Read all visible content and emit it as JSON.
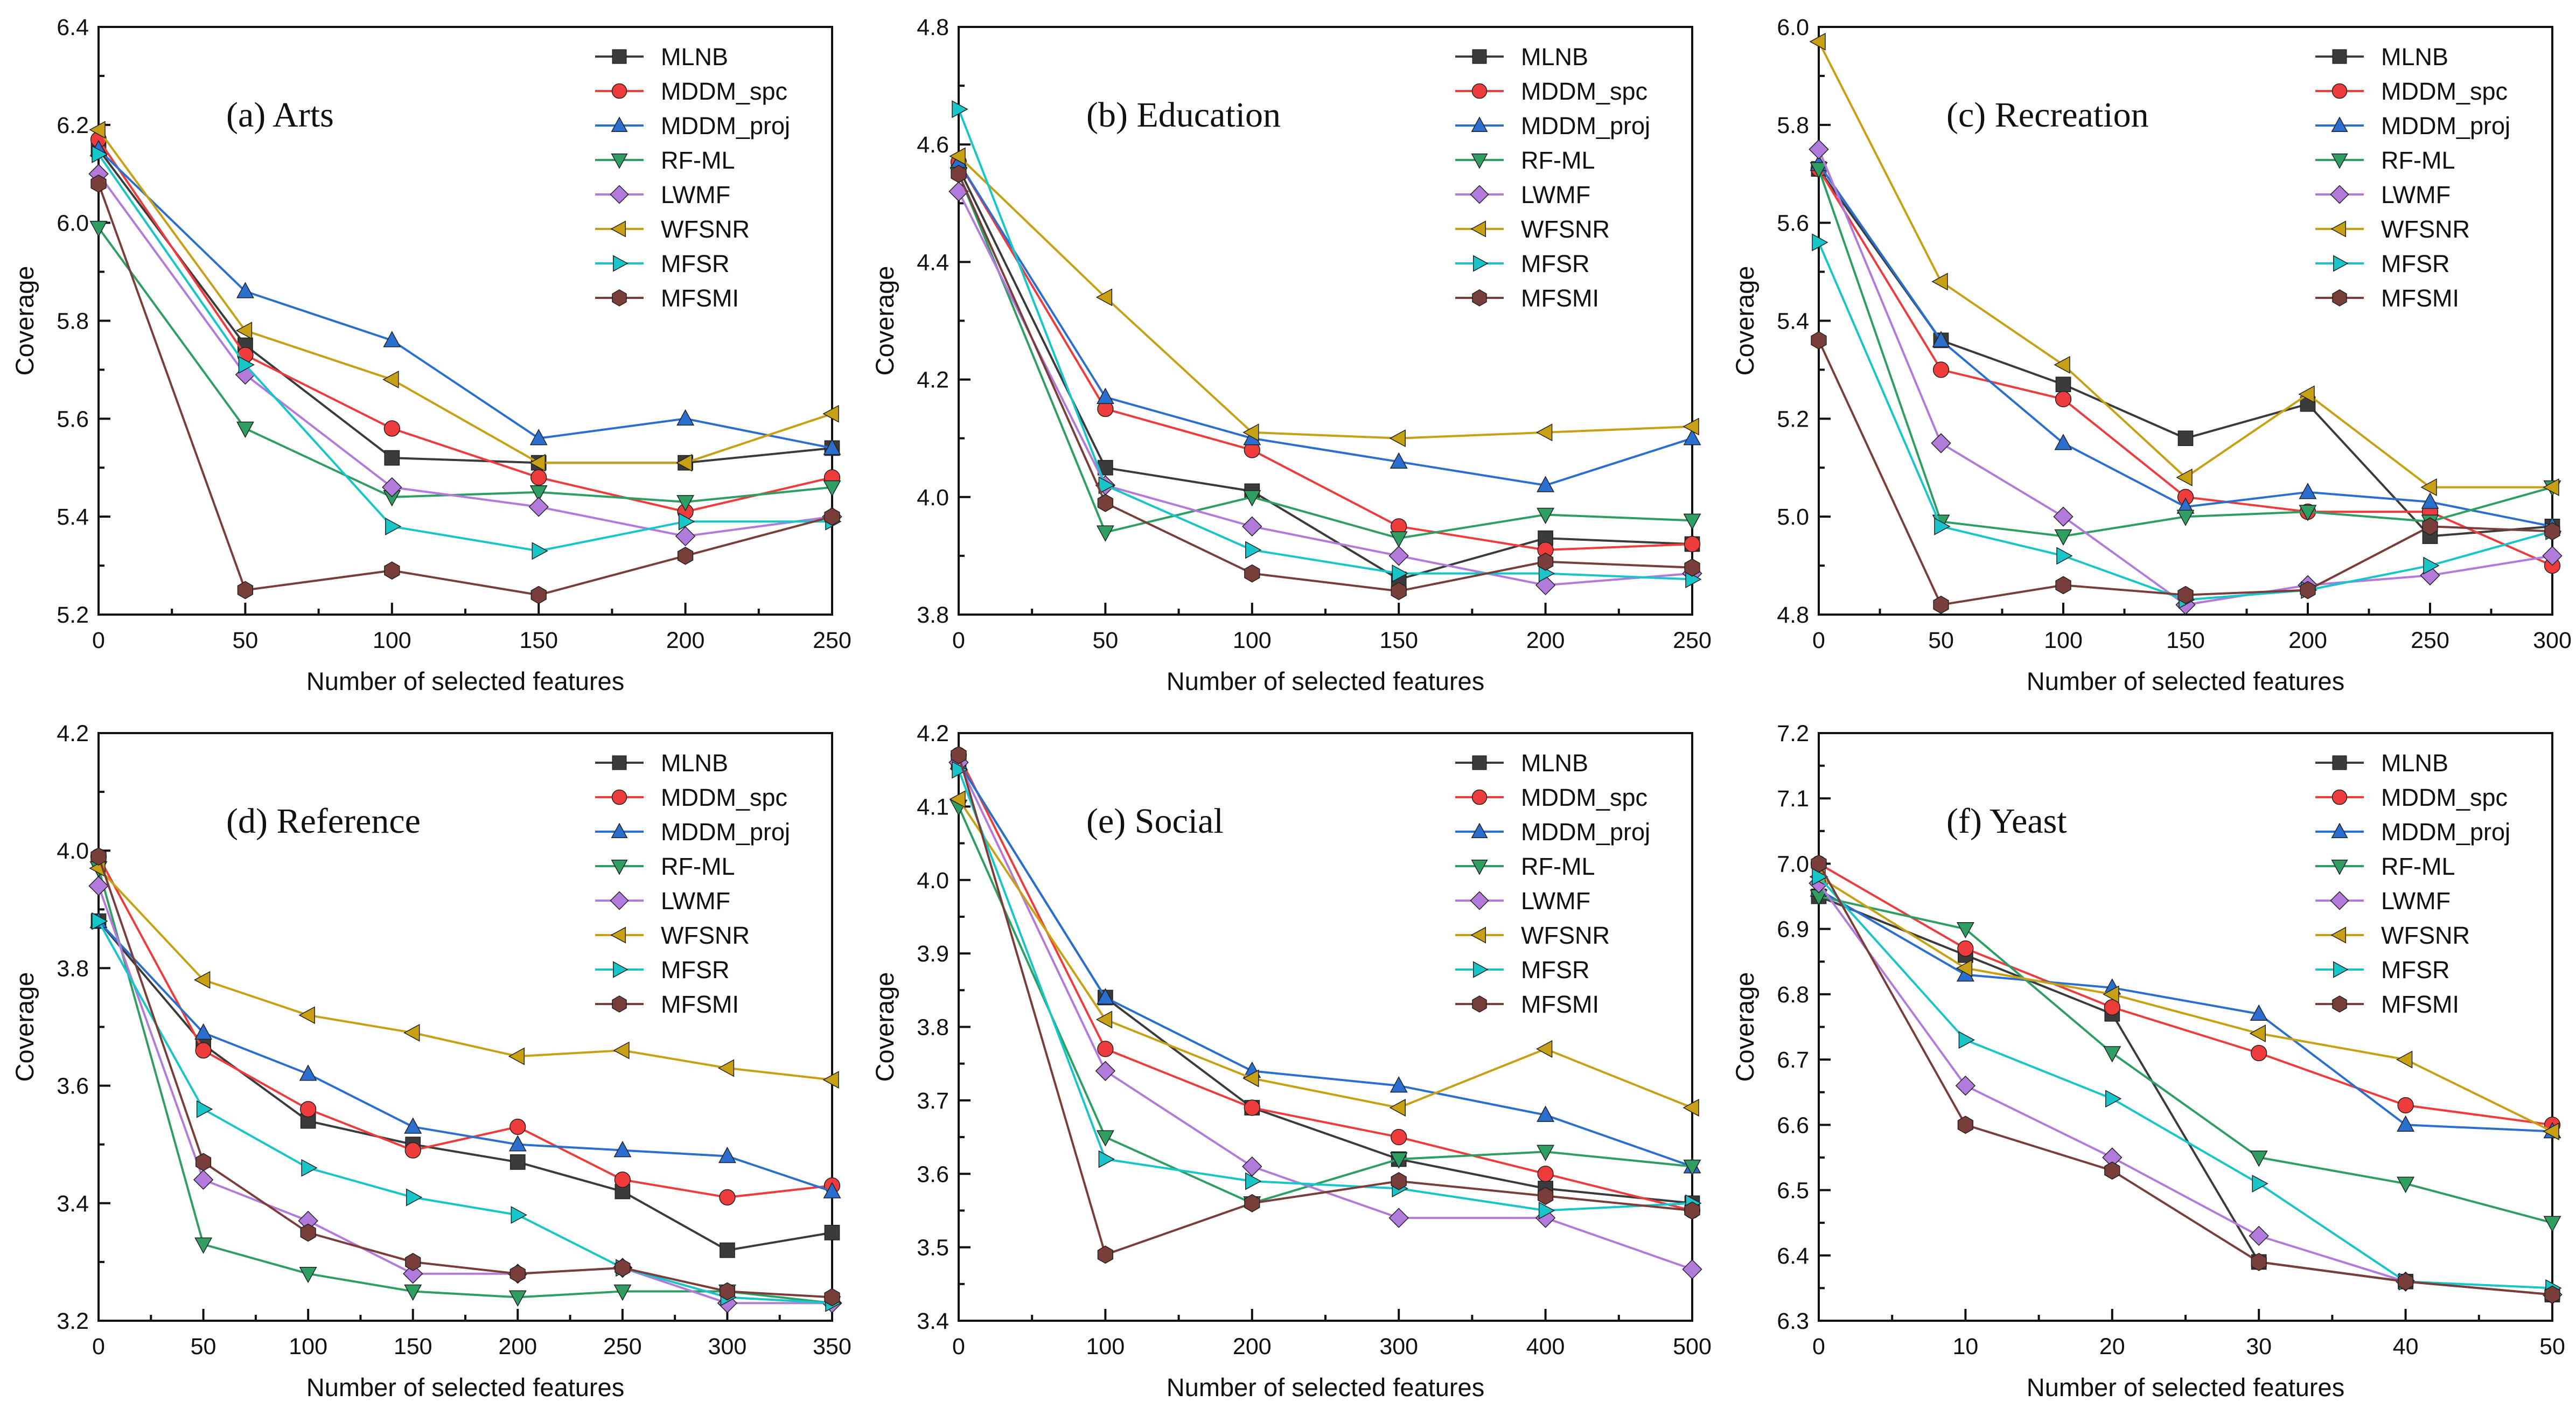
{
  "figure": {
    "series_names": [
      "MLNB",
      "MDDM_spc",
      "MDDM_proj",
      "RF-ML",
      "LWMF",
      "WFSNR",
      "MFSR",
      "MFSMI"
    ],
    "series_styles": [
      {
        "name": "MLNB",
        "color": "#3b3b3b",
        "marker": "square"
      },
      {
        "name": "MDDM_spc",
        "color": "#ee3b3b",
        "marker": "circle"
      },
      {
        "name": "MDDM_proj",
        "color": "#2a6fcf",
        "marker": "triangle-up"
      },
      {
        "name": "RF-ML",
        "color": "#2e9e63",
        "marker": "triangle-down"
      },
      {
        "name": "LWMF",
        "color": "#b27bdb",
        "marker": "diamond"
      },
      {
        "name": "WFSNR",
        "color": "#c8a014",
        "marker": "triangle-left"
      },
      {
        "name": "MFSR",
        "color": "#18c5c9",
        "marker": "triangle-right"
      },
      {
        "name": "MFSMI",
        "color": "#7a3e3a",
        "marker": "hexagon"
      }
    ]
  },
  "chart_data": [
    {
      "type": "line",
      "title": "(a) Arts",
      "xlabel": "Number of selected features",
      "ylabel": "Coverage",
      "x": [
        0,
        50,
        100,
        150,
        200,
        250
      ],
      "xlim": [
        0,
        250
      ],
      "ylim": [
        5.2,
        6.4
      ],
      "xticks": [
        "0",
        "50",
        "100",
        "150",
        "200",
        "250"
      ],
      "yticks": [
        "5.2",
        "5.4",
        "5.6",
        "5.8",
        "6.0",
        "6.2",
        "6.4"
      ],
      "legend_position": "top-right",
      "series": [
        {
          "name": "MLNB",
          "values": [
            6.15,
            5.75,
            5.52,
            5.51,
            5.51,
            5.54
          ]
        },
        {
          "name": "MDDM_spc",
          "values": [
            6.17,
            5.73,
            5.58,
            5.48,
            5.41,
            5.48
          ]
        },
        {
          "name": "MDDM_proj",
          "values": [
            6.15,
            5.86,
            5.76,
            5.56,
            5.6,
            5.54
          ]
        },
        {
          "name": "RF-ML",
          "values": [
            5.99,
            5.58,
            5.44,
            5.45,
            5.43,
            5.46
          ]
        },
        {
          "name": "LWMF",
          "values": [
            6.1,
            5.69,
            5.46,
            5.42,
            5.36,
            5.4
          ]
        },
        {
          "name": "WFSNR",
          "values": [
            6.19,
            5.78,
            5.68,
            5.51,
            5.51,
            5.61
          ]
        },
        {
          "name": "MFSR",
          "values": [
            6.14,
            5.71,
            5.38,
            5.33,
            5.39,
            5.39
          ]
        },
        {
          "name": "MFSMI",
          "values": [
            6.08,
            5.25,
            5.29,
            5.24,
            5.32,
            5.4
          ]
        }
      ]
    },
    {
      "type": "line",
      "title": "(b) Education",
      "xlabel": "Number of selected features",
      "ylabel": "Coverage",
      "x": [
        0,
        50,
        100,
        150,
        200,
        250
      ],
      "xlim": [
        0,
        250
      ],
      "ylim": [
        3.8,
        4.8
      ],
      "xticks": [
        "0",
        "50",
        "100",
        "150",
        "200",
        "250"
      ],
      "yticks": [
        "3.8",
        "4.0",
        "4.2",
        "4.4",
        "4.6",
        "4.8"
      ],
      "legend_position": "top-right",
      "series": [
        {
          "name": "MLNB",
          "values": [
            4.56,
            4.05,
            4.01,
            3.86,
            3.93,
            3.92
          ]
        },
        {
          "name": "MDDM_spc",
          "values": [
            4.57,
            4.15,
            4.08,
            3.95,
            3.91,
            3.92
          ]
        },
        {
          "name": "MDDM_proj",
          "values": [
            4.57,
            4.17,
            4.1,
            4.06,
            4.02,
            4.1
          ]
        },
        {
          "name": "RF-ML",
          "values": [
            4.55,
            3.94,
            4.0,
            3.93,
            3.97,
            3.96
          ]
        },
        {
          "name": "LWMF",
          "values": [
            4.52,
            4.02,
            3.95,
            3.9,
            3.85,
            3.87
          ]
        },
        {
          "name": "WFSNR",
          "values": [
            4.58,
            4.34,
            4.11,
            4.1,
            4.11,
            4.12
          ]
        },
        {
          "name": "MFSR",
          "values": [
            4.66,
            4.02,
            3.91,
            3.87,
            3.87,
            3.86
          ]
        },
        {
          "name": "MFSMI",
          "values": [
            4.55,
            3.99,
            3.87,
            3.84,
            3.89,
            3.88
          ]
        }
      ]
    },
    {
      "type": "line",
      "title": "(c) Recreation",
      "xlabel": "Number of selected features",
      "ylabel": "Coverage",
      "x": [
        0,
        50,
        100,
        150,
        200,
        250,
        300
      ],
      "xlim": [
        0,
        300
      ],
      "ylim": [
        4.8,
        6.0
      ],
      "xticks": [
        "0",
        "50",
        "100",
        "150",
        "200",
        "250",
        "300"
      ],
      "yticks": [
        "4.8",
        "5.0",
        "5.2",
        "5.4",
        "5.6",
        "5.8",
        "6.0"
      ],
      "legend_position": "top-right",
      "series": [
        {
          "name": "MLNB",
          "values": [
            5.71,
            5.36,
            5.27,
            5.16,
            5.23,
            4.96,
            4.98
          ]
        },
        {
          "name": "MDDM_spc",
          "values": [
            5.71,
            5.3,
            5.24,
            5.04,
            5.01,
            5.01,
            4.9
          ]
        },
        {
          "name": "MDDM_proj",
          "values": [
            5.72,
            5.36,
            5.15,
            5.02,
            5.05,
            5.03,
            4.98
          ]
        },
        {
          "name": "RF-ML",
          "values": [
            5.71,
            4.99,
            4.96,
            5.0,
            5.01,
            4.99,
            5.06
          ]
        },
        {
          "name": "LWMF",
          "values": [
            5.75,
            5.15,
            5.0,
            4.82,
            4.86,
            4.88,
            4.92
          ]
        },
        {
          "name": "WFSNR",
          "values": [
            5.97,
            5.48,
            5.31,
            5.08,
            5.25,
            5.06,
            5.06
          ]
        },
        {
          "name": "MFSR",
          "values": [
            5.56,
            4.98,
            4.92,
            4.83,
            4.85,
            4.9,
            4.97
          ]
        },
        {
          "name": "MFSMI",
          "values": [
            5.36,
            4.82,
            4.86,
            4.84,
            4.85,
            4.98,
            4.97
          ]
        }
      ]
    },
    {
      "type": "line",
      "title": "(d) Reference",
      "xlabel": "Number of selected features",
      "ylabel": "Coverage",
      "x": [
        0,
        50,
        100,
        150,
        200,
        250,
        300,
        350
      ],
      "xlim": [
        0,
        350
      ],
      "ylim": [
        3.2,
        4.2
      ],
      "xticks": [
        "0",
        "50",
        "100",
        "150",
        "200",
        "250",
        "300",
        "350"
      ],
      "yticks": [
        "3.2",
        "3.4",
        "3.6",
        "3.8",
        "4.0",
        "4.2"
      ],
      "legend_position": "top-right",
      "series": [
        {
          "name": "MLNB",
          "values": [
            3.88,
            3.67,
            3.54,
            3.5,
            3.47,
            3.42,
            3.32,
            3.35
          ]
        },
        {
          "name": "MDDM_spc",
          "values": [
            3.99,
            3.66,
            3.56,
            3.49,
            3.53,
            3.44,
            3.41,
            3.43
          ]
        },
        {
          "name": "MDDM_proj",
          "values": [
            3.88,
            3.69,
            3.62,
            3.53,
            3.5,
            3.49,
            3.48,
            3.42
          ]
        },
        {
          "name": "RF-ML",
          "values": [
            3.97,
            3.33,
            3.28,
            3.25,
            3.24,
            3.25,
            3.25,
            3.23
          ]
        },
        {
          "name": "LWMF",
          "values": [
            3.94,
            3.44,
            3.37,
            3.28,
            3.28,
            3.29,
            3.23,
            3.23
          ]
        },
        {
          "name": "WFSNR",
          "values": [
            3.97,
            3.78,
            3.72,
            3.69,
            3.65,
            3.66,
            3.63,
            3.61
          ]
        },
        {
          "name": "MFSR",
          "values": [
            3.88,
            3.56,
            3.46,
            3.41,
            3.38,
            3.29,
            3.24,
            3.23
          ]
        },
        {
          "name": "MFSMI",
          "values": [
            3.99,
            3.47,
            3.35,
            3.3,
            3.28,
            3.29,
            3.25,
            3.24
          ]
        }
      ]
    },
    {
      "type": "line",
      "title": "(e) Social",
      "xlabel": "Number of selected features",
      "ylabel": "Coverage",
      "x": [
        0,
        100,
        200,
        300,
        400,
        500
      ],
      "xlim": [
        0,
        500
      ],
      "ylim": [
        3.4,
        4.2
      ],
      "xticks": [
        "0",
        "100",
        "200",
        "300",
        "400",
        "500"
      ],
      "yticks": [
        "3.4",
        "3.5",
        "3.6",
        "3.7",
        "3.8",
        "3.9",
        "4.0",
        "4.1",
        "4.2"
      ],
      "legend_position": "top-right",
      "series": [
        {
          "name": "MLNB",
          "values": [
            4.16,
            3.84,
            3.69,
            3.62,
            3.58,
            3.56
          ]
        },
        {
          "name": "MDDM_spc",
          "values": [
            4.17,
            3.77,
            3.69,
            3.65,
            3.6,
            3.55
          ]
        },
        {
          "name": "MDDM_proj",
          "values": [
            4.16,
            3.84,
            3.74,
            3.72,
            3.68,
            3.61
          ]
        },
        {
          "name": "RF-ML",
          "values": [
            4.1,
            3.65,
            3.56,
            3.62,
            3.63,
            3.61
          ]
        },
        {
          "name": "LWMF",
          "values": [
            4.16,
            3.74,
            3.61,
            3.54,
            3.54,
            3.47
          ]
        },
        {
          "name": "WFSNR",
          "values": [
            4.11,
            3.81,
            3.73,
            3.69,
            3.77,
            3.69
          ]
        },
        {
          "name": "MFSR",
          "values": [
            4.15,
            3.62,
            3.59,
            3.58,
            3.55,
            3.56
          ]
        },
        {
          "name": "MFSMI",
          "values": [
            4.17,
            3.49,
            3.56,
            3.59,
            3.57,
            3.55
          ]
        }
      ]
    },
    {
      "type": "line",
      "title": "(f) Yeast",
      "xlabel": "Number of selected features",
      "ylabel": "Coverage",
      "x": [
        0,
        10,
        20,
        30,
        40,
        50
      ],
      "xlim": [
        0,
        50
      ],
      "ylim": [
        6.3,
        7.2
      ],
      "xticks": [
        "0",
        "10",
        "20",
        "30",
        "40",
        "50"
      ],
      "yticks": [
        "6.3",
        "6.4",
        "6.5",
        "6.6",
        "6.7",
        "6.8",
        "6.9",
        "7.0",
        "7.1",
        "7.2"
      ],
      "legend_position": "top-right",
      "series": [
        {
          "name": "MLNB",
          "values": [
            6.95,
            6.86,
            6.77,
            6.39,
            6.36,
            6.34
          ]
        },
        {
          "name": "MDDM_spc",
          "values": [
            7.0,
            6.87,
            6.78,
            6.71,
            6.63,
            6.6
          ]
        },
        {
          "name": "MDDM_proj",
          "values": [
            6.96,
            6.83,
            6.81,
            6.77,
            6.6,
            6.59
          ]
        },
        {
          "name": "RF-ML",
          "values": [
            6.95,
            6.9,
            6.71,
            6.55,
            6.51,
            6.45
          ]
        },
        {
          "name": "LWMF",
          "values": [
            6.97,
            6.66,
            6.55,
            6.43,
            6.36,
            6.34
          ]
        },
        {
          "name": "WFSNR",
          "values": [
            6.98,
            6.84,
            6.8,
            6.74,
            6.7,
            6.59
          ]
        },
        {
          "name": "MFSR",
          "values": [
            6.98,
            6.73,
            6.64,
            6.51,
            6.36,
            6.35
          ]
        },
        {
          "name": "MFSMI",
          "values": [
            7.0,
            6.6,
            6.53,
            6.39,
            6.36,
            6.34
          ]
        }
      ]
    }
  ]
}
